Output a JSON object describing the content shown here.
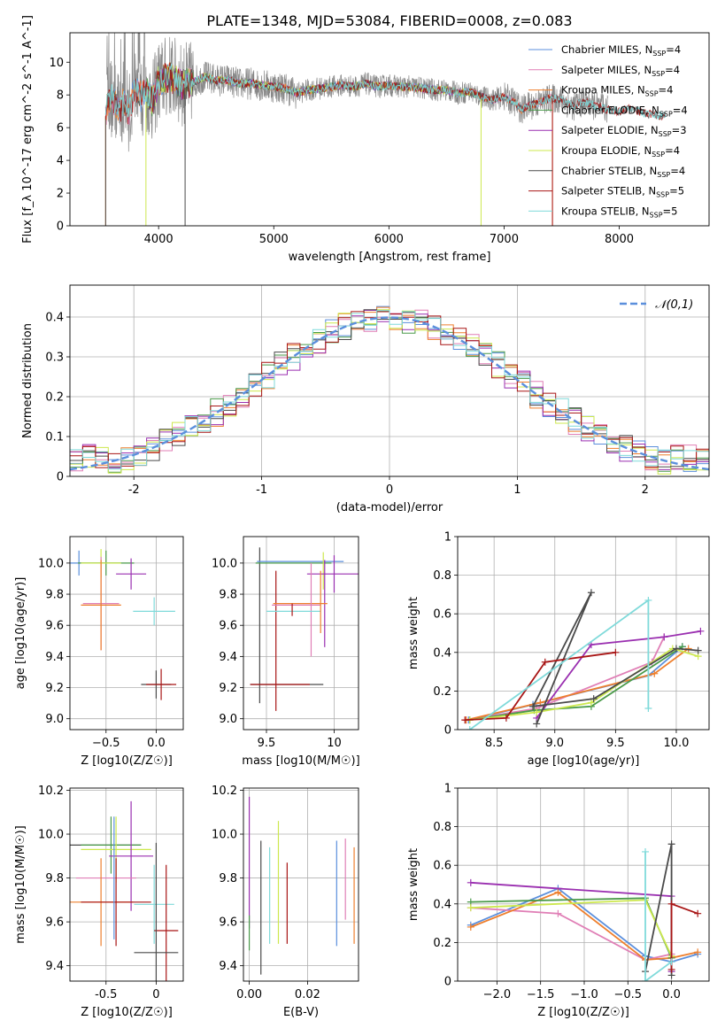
{
  "figure_title": "PLATE=1348, MJD=53084, FIBERID=0008, z=0.083",
  "colors": {
    "chabrier_miles": "#5b8fdc",
    "salpeter_miles": "#e07fb6",
    "kroupa_miles": "#ee7f2d",
    "chabrier_elodie": "#4a9a4a",
    "salpeter_elodie": "#9a2fb0",
    "kroupa_elodie": "#cde84e",
    "chabrier_stelib": "#4a4a4a",
    "salpeter_stelib": "#a81515",
    "kroupa_stelib": "#7fdada",
    "data_gray": "#888888",
    "gaussian": "#5b8fdc",
    "grid": "#b0b0b0"
  },
  "chart_data": [
    {
      "id": "spectrum",
      "type": "line",
      "title": "PLATE=1348, MJD=53084, FIBERID=0008, z=0.083",
      "xlabel": "wavelength [Angstrom, rest frame]",
      "ylabel": "Flux [f_λ 10^-17 erg cm^-2 s^-1 A^-1]",
      "xlim": [
        3230,
        8780
      ],
      "ylim": [
        0,
        11.8
      ],
      "xticks": [
        4000,
        5000,
        6000,
        7000,
        8000
      ],
      "yticks": [
        0,
        2,
        4,
        6,
        8,
        10
      ],
      "grid": false,
      "legend_position": "right",
      "legend": [
        "Chabrier MILES, N_SSP=4",
        "Salpeter MILES, N_SSP=4",
        "Kroupa MILES, N_SSP=4",
        "Chabrier ELODIE, N_SSP=4",
        "Salpeter ELODIE, N_SSP=3",
        "Kroupa ELODIE, N_SSP=4",
        "Chabrier STELIB, N_SSP=4",
        "Salpeter STELIB, N_SSP=5",
        "Kroupa STELIB, N_SSP=5"
      ],
      "continuum": {
        "x": [
          3550,
          3600,
          3650,
          3700,
          3750,
          3800,
          3850,
          3900,
          3950,
          4000,
          4100,
          4200,
          4300,
          4400,
          4500,
          4600,
          4700,
          4800,
          4900,
          5000,
          5100,
          5200,
          5300,
          5400,
          5500,
          5600,
          5700,
          5800,
          5900,
          6000,
          6100,
          6200,
          6300,
          6400,
          6500,
          6600,
          6700,
          6800,
          6900,
          7000,
          7100,
          7150,
          7200,
          7300,
          7400,
          7500,
          7600,
          7700,
          7800,
          7900,
          8000,
          8100,
          8200,
          8300,
          8400
        ],
        "y": [
          7.5,
          7.8,
          7.2,
          7.6,
          7.0,
          8.6,
          7.9,
          8.1,
          7.6,
          8.8,
          9.2,
          8.6,
          8.8,
          9.1,
          8.9,
          8.9,
          8.7,
          8.7,
          8.6,
          8.5,
          8.4,
          8.1,
          8.3,
          8.4,
          8.5,
          8.6,
          8.5,
          8.7,
          8.5,
          8.6,
          8.5,
          8.5,
          8.4,
          8.3,
          8.3,
          8.1,
          8.2,
          7.9,
          7.7,
          7.9,
          7.5,
          7.1,
          7.3,
          7.5,
          7.8,
          7.7,
          7.3,
          7.6,
          7.3,
          7.1,
          7.0,
          7.2,
          6.9,
          6.8,
          6.7
        ]
      }
    },
    {
      "id": "residuals",
      "type": "histogram",
      "xlabel": "(data-model)/error",
      "ylabel": "Normed distribution",
      "xlim": [
        -2.5,
        2.5
      ],
      "ylim": [
        0,
        0.48
      ],
      "xticks": [
        -2,
        -1,
        0,
        1,
        2
      ],
      "yticks": [
        0.0,
        0.1,
        0.2,
        0.3,
        0.4
      ],
      "grid": true,
      "legend_position": "top-right",
      "legend": [
        "𝒩(0,1)"
      ],
      "bin_start": -2.5,
      "bin_width": 0.1
    },
    {
      "id": "age_vs_z",
      "type": "scatter",
      "xlabel": "Z [log10(Z/Z☉)]",
      "ylabel": "age  [log10(age/yr)]",
      "xlim": [
        -0.86,
        0.27
      ],
      "ylim": [
        8.93,
        10.17
      ],
      "xticks": [
        -0.5,
        0.0
      ],
      "xtick_labels": [
        "−0.5",
        "0.0"
      ],
      "yticks": [
        9.0,
        9.2,
        9.4,
        9.6,
        9.8,
        10.0
      ],
      "yticklabels": [
        "9.0",
        "9.2",
        "9.4",
        "9.6",
        "9.8",
        "10.0"
      ],
      "grid": true,
      "points": [
        {
          "series": "chabrier_miles",
          "x": -0.77,
          "y": 10.0,
          "xerr": 0.42,
          "yerr": 0.08
        },
        {
          "series": "chabrier_elodie",
          "x": -0.5,
          "y": 10.0,
          "xerr": 0.28,
          "yerr": 0.08
        },
        {
          "series": "kroupa_elodie",
          "x": -0.55,
          "y": 10.0,
          "xerr": 0.2,
          "yerr": 0.09
        },
        {
          "series": "salpeter_elodie",
          "x": -0.25,
          "y": 9.93,
          "xerr": 0.15,
          "yerr": 0.1
        },
        {
          "series": "salpeter_miles",
          "x": -0.55,
          "y": 9.74,
          "xerr": 0.18,
          "yerr": 0.3
        },
        {
          "series": "kroupa_miles",
          "x": -0.55,
          "y": 9.73,
          "xerr": 0.2,
          "yerr": 0.29
        },
        {
          "series": "kroupa_stelib",
          "x": -0.02,
          "y": 9.69,
          "xerr": 0.21,
          "yerr": 0.09
        },
        {
          "series": "chabrier_stelib",
          "x": 0.0,
          "y": 9.22,
          "xerr": 0.15,
          "yerr": 0.09
        },
        {
          "series": "salpeter_stelib",
          "x": 0.05,
          "y": 9.22,
          "xerr": 0.15,
          "yerr": 0.1
        }
      ]
    },
    {
      "id": "age_vs_mass",
      "type": "scatter",
      "xlabel": "mass [log10(M/M☉)]",
      "xlim": [
        9.33,
        10.18
      ],
      "ylim": [
        8.93,
        10.17
      ],
      "xticks": [
        9.5,
        10.0
      ],
      "yticks": [
        9.0,
        9.2,
        9.4,
        9.6,
        9.8,
        10.0
      ],
      "yticklabels": [
        "9.0",
        "9.2",
        "9.4",
        "9.6",
        "9.8",
        "10.0"
      ],
      "grid": true
    },
    {
      "id": "massweight_vs_age",
      "type": "line",
      "xlabel": "age  [log10(age/yr)]",
      "ylabel": "mass weight",
      "xlim": [
        8.2,
        10.27
      ],
      "ylim": [
        0,
        1.0
      ],
      "xticks": [
        8.5,
        9.0,
        9.5,
        10.0
      ],
      "xticklabels": [
        "8.5",
        "9.0",
        "9.5",
        "10.0"
      ],
      "yticks": [
        0.0,
        0.2,
        0.4,
        0.6,
        0.8,
        1.0
      ],
      "grid": true,
      "series": [
        {
          "key": "chabrier_miles",
          "x": [
            8.29,
            8.82,
            9.77,
            10.05
          ],
          "y": [
            0.05,
            0.13,
            0.28,
            0.43
          ]
        },
        {
          "key": "salpeter_miles",
          "x": [
            8.27,
            8.85,
            9.8,
            9.9
          ],
          "y": [
            0.05,
            0.11,
            0.35,
            0.48
          ]
        },
        {
          "key": "kroupa_miles",
          "x": [
            8.27,
            8.88,
            9.82,
            10.1
          ],
          "y": [
            0.05,
            0.14,
            0.29,
            0.42
          ]
        },
        {
          "key": "chabrier_elodie",
          "x": [
            8.3,
            8.83,
            9.3,
            10.05
          ],
          "y": [
            0.05,
            0.1,
            0.12,
            0.43
          ]
        },
        {
          "key": "salpeter_elodie",
          "x": [
            8.85,
            9.3,
            9.9,
            10.2
          ],
          "y": [
            0.06,
            0.44,
            0.48,
            0.51
          ]
        },
        {
          "key": "kroupa_elodie",
          "x": [
            8.3,
            8.85,
            9.3,
            9.97,
            10.18
          ],
          "y": [
            0.05,
            0.09,
            0.14,
            0.42,
            0.38
          ]
        },
        {
          "key": "chabrier_stelib",
          "x": [
            8.85,
            9.3,
            8.82,
            9.32,
            10.0,
            10.18
          ],
          "y": [
            0.03,
            0.71,
            0.12,
            0.16,
            0.42,
            0.41
          ]
        },
        {
          "key": "salpeter_stelib",
          "x": [
            8.26,
            8.6,
            8.92,
            9.5
          ],
          "y": [
            0.05,
            0.06,
            0.35,
            0.4
          ]
        },
        {
          "key": "kroupa_stelib",
          "x": [
            8.3,
            9.77,
            9.77
          ],
          "y": [
            0.0,
            0.67,
            0.11
          ]
        }
      ]
    },
    {
      "id": "mass_vs_z",
      "type": "scatter",
      "xlabel": "Z [log10(Z/Z☉)]",
      "ylabel": "mass [log10(M/M☉)]",
      "xlim": [
        -0.86,
        0.27
      ],
      "ylim": [
        9.33,
        10.21
      ],
      "xticks": [
        -0.5,
        0.0
      ],
      "yticks": [
        9.4,
        9.6,
        9.8,
        10.0,
        10.2
      ],
      "yticklabels": [
        "9.4",
        "9.6",
        "9.8",
        "10.0",
        "10.2"
      ],
      "grid": true
    },
    {
      "id": "mass_vs_ebv",
      "type": "scatter",
      "xlabel": "E(B-V)",
      "xlim": [
        -0.002,
        0.0375
      ],
      "ylim": [
        9.33,
        10.21
      ],
      "xticks": [
        0.0,
        0.02
      ],
      "xticklabels": [
        "0.00",
        "0.02"
      ],
      "yticks": [
        9.4,
        9.6,
        9.8,
        10.0,
        10.2
      ],
      "yticklabels": [
        "9.4",
        "9.6",
        "9.8",
        "10.0",
        "10.2"
      ],
      "grid": true
    },
    {
      "id": "massweight_vs_z",
      "type": "line",
      "xlabel": "Z [log10(Z/Z☉)]",
      "ylabel": "mass weight",
      "xlim": [
        -2.45,
        0.43
      ],
      "ylim": [
        0,
        1.0
      ],
      "xticks": [
        -2.0,
        -1.5,
        -1.0,
        -0.5,
        0.0
      ],
      "xticklabels": [
        "−2.0",
        "−1.5",
        "−1.0",
        "−0.5",
        "0.0"
      ],
      "yticks": [
        0.0,
        0.2,
        0.4,
        0.6,
        0.8,
        1.0
      ],
      "grid": true,
      "series": [
        {
          "key": "chabrier_miles",
          "x": [
            -2.3,
            -1.3,
            -0.3,
            0.0,
            0.3
          ],
          "y": [
            0.29,
            0.48,
            0.13,
            0.1,
            0.14
          ]
        },
        {
          "key": "salpeter_miles",
          "x": [
            -2.3,
            -1.3,
            -0.3,
            0.0
          ],
          "y": [
            0.38,
            0.35,
            0.11,
            0.14
          ]
        },
        {
          "key": "kroupa_miles",
          "x": [
            -2.3,
            -1.3,
            -0.3,
            0.0,
            0.3
          ],
          "y": [
            0.28,
            0.46,
            0.11,
            0.12,
            0.15
          ]
        },
        {
          "key": "chabrier_elodie",
          "x": [
            -2.3,
            -0.3,
            0.0
          ],
          "y": [
            0.41,
            0.43,
            0.12
          ]
        },
        {
          "key": "salpeter_elodie",
          "x": [
            -2.3,
            0.0,
            0.0
          ],
          "y": [
            0.51,
            0.44,
            0.05
          ]
        },
        {
          "key": "kroupa_elodie",
          "x": [
            -2.3,
            -0.3,
            0.0
          ],
          "y": [
            0.38,
            0.42,
            0.13
          ]
        },
        {
          "key": "chabrier_stelib",
          "x": [
            -0.3,
            0.0,
            0.0
          ],
          "y": [
            0.05,
            0.71,
            0.03
          ]
        },
        {
          "key": "salpeter_stelib",
          "x": [
            0.0,
            0.0,
            0.3
          ],
          "y": [
            0.06,
            0.4,
            0.35
          ]
        },
        {
          "key": "kroupa_stelib",
          "x": [
            -0.3,
            -0.3,
            0.0
          ],
          "y": [
            0.67,
            0.0,
            0.1
          ]
        }
      ]
    }
  ]
}
